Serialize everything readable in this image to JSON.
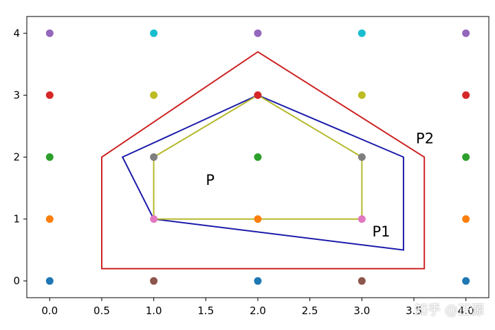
{
  "chart_data": {
    "type": "scatter",
    "title": "",
    "xlabel": "",
    "ylabel": "",
    "xlim": [
      -0.22,
      4.22
    ],
    "ylim": [
      -0.27,
      4.27
    ],
    "x_ticks": [
      0.0,
      0.5,
      1.0,
      1.5,
      2.0,
      2.5,
      3.0,
      3.5,
      4.0
    ],
    "x_tick_labels": [
      "0.0",
      "0.5",
      "1.0",
      "1.5",
      "2.0",
      "2.5",
      "3.0",
      "3.5",
      "4.0"
    ],
    "y_ticks": [
      0,
      1,
      2,
      3,
      4
    ],
    "y_tick_labels": [
      "0",
      "1",
      "2",
      "3",
      "4"
    ],
    "grid": false,
    "points": [
      {
        "x": 0,
        "y": 4,
        "color": "#9467bd"
      },
      {
        "x": 1,
        "y": 4,
        "color": "#17becf"
      },
      {
        "x": 2,
        "y": 4,
        "color": "#9467bd"
      },
      {
        "x": 3,
        "y": 4,
        "color": "#17becf"
      },
      {
        "x": 4,
        "y": 4,
        "color": "#9467bd"
      },
      {
        "x": 0,
        "y": 3,
        "color": "#d62728"
      },
      {
        "x": 1,
        "y": 3,
        "color": "#bcbd22"
      },
      {
        "x": 2,
        "y": 3,
        "color": "#d62728"
      },
      {
        "x": 3,
        "y": 3,
        "color": "#bcbd22"
      },
      {
        "x": 4,
        "y": 3,
        "color": "#d62728"
      },
      {
        "x": 0,
        "y": 2,
        "color": "#2ca02c"
      },
      {
        "x": 1,
        "y": 2,
        "color": "#7f7f7f"
      },
      {
        "x": 2,
        "y": 2,
        "color": "#2ca02c"
      },
      {
        "x": 3,
        "y": 2,
        "color": "#7f7f7f"
      },
      {
        "x": 4,
        "y": 2,
        "color": "#2ca02c"
      },
      {
        "x": 0,
        "y": 1,
        "color": "#ff7f0e"
      },
      {
        "x": 1,
        "y": 1,
        "color": "#e377c2"
      },
      {
        "x": 2,
        "y": 1,
        "color": "#ff7f0e"
      },
      {
        "x": 3,
        "y": 1,
        "color": "#e377c2"
      },
      {
        "x": 4,
        "y": 1,
        "color": "#ff7f0e"
      },
      {
        "x": 0,
        "y": 0,
        "color": "#1f77b4"
      },
      {
        "x": 1,
        "y": 0,
        "color": "#8c564b"
      },
      {
        "x": 2,
        "y": 0,
        "color": "#1f77b4"
      },
      {
        "x": 3,
        "y": 0,
        "color": "#8c564b"
      },
      {
        "x": 4,
        "y": 0,
        "color": "#1f77b4"
      }
    ],
    "polygons": [
      {
        "name": "P2",
        "color": "#cc2222",
        "vertices": [
          [
            0.5,
            0.2
          ],
          [
            3.6,
            0.2
          ],
          [
            3.6,
            2.0
          ],
          [
            2.0,
            3.7
          ],
          [
            0.5,
            2.0
          ]
        ]
      },
      {
        "name": "P1",
        "color": "#1a1aaa",
        "vertices": [
          [
            0.7,
            2.0
          ],
          [
            2.0,
            3.0
          ],
          [
            3.4,
            2.0
          ],
          [
            3.4,
            0.5
          ],
          [
            1.0,
            1.0
          ]
        ]
      },
      {
        "name": "P",
        "color": "#b5b82a",
        "vertices": [
          [
            1.0,
            1.0
          ],
          [
            3.0,
            1.0
          ],
          [
            3.0,
            2.0
          ],
          [
            2.0,
            3.0
          ],
          [
            1.0,
            2.0
          ]
        ]
      }
    ],
    "annotations": [
      {
        "text": "P2",
        "x": 3.52,
        "y": 2.22
      },
      {
        "text": "P",
        "x": 1.5,
        "y": 1.55
      },
      {
        "text": "P1",
        "x": 3.1,
        "y": 0.72
      }
    ]
  },
  "watermark": "知乎 @正源"
}
